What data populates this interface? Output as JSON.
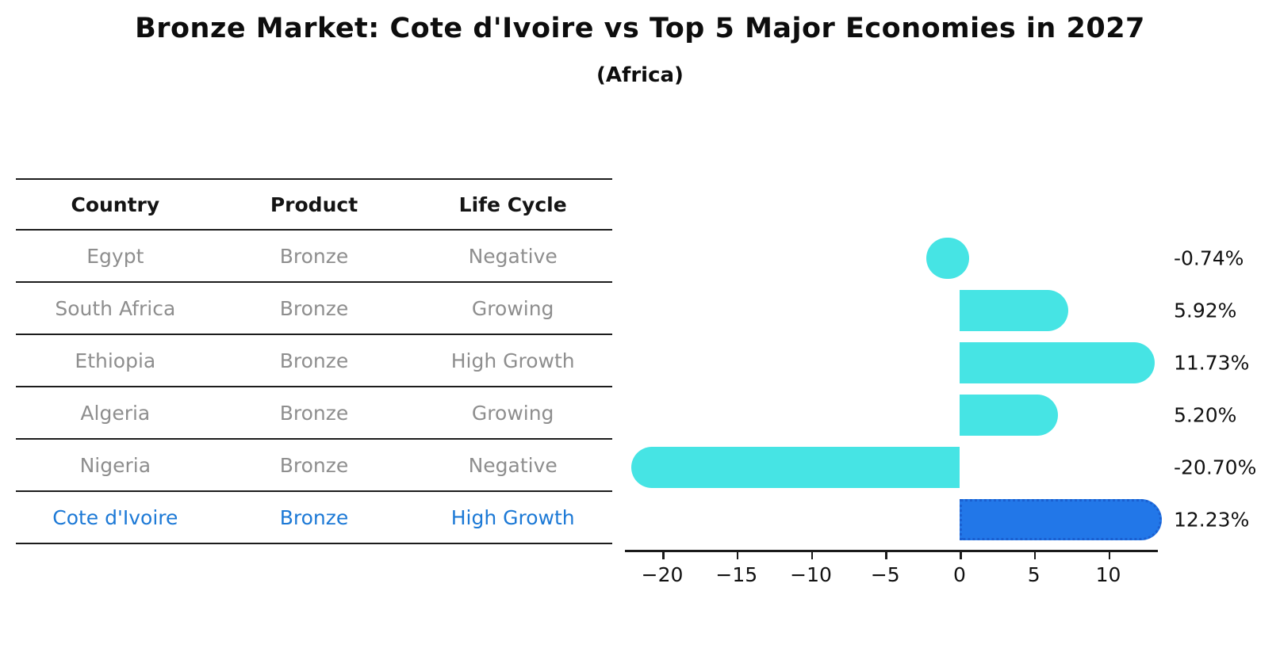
{
  "title": "Bronze Market: Cote d'Ivoire vs Top 5 Major Economies in 2027",
  "subtitle": "(Africa)",
  "table": {
    "columns": [
      "Country",
      "Product",
      "Life Cycle"
    ],
    "rows": [
      {
        "country": "Egypt",
        "product": "Bronze",
        "life_cycle": "Negative",
        "highlighted": false
      },
      {
        "country": "South Africa",
        "product": "Bronze",
        "life_cycle": "Growing",
        "highlighted": false
      },
      {
        "country": "Ethiopia",
        "product": "Bronze",
        "life_cycle": "High Growth",
        "highlighted": false
      },
      {
        "country": "Algeria",
        "product": "Bronze",
        "life_cycle": "Growing",
        "highlighted": false
      },
      {
        "country": "Nigeria",
        "product": "Bronze",
        "life_cycle": "Negative",
        "highlighted": false
      },
      {
        "country": "Cote d'Ivoire",
        "product": "Bronze",
        "life_cycle": "High Growth",
        "highlighted": true
      }
    ]
  },
  "chart_data": {
    "type": "bar",
    "orientation": "horizontal",
    "title": "Bronze Market: Cote d'Ivoire vs Top 5 Major Economies in 2027",
    "subtitle": "(Africa)",
    "categories": [
      "Egypt",
      "South Africa",
      "Ethiopia",
      "Algeria",
      "Nigeria",
      "Cote d'Ivoire"
    ],
    "values": [
      -0.74,
      5.92,
      11.73,
      5.2,
      -20.7,
      12.23
    ],
    "value_labels": [
      "-0.74%",
      "5.92%",
      "11.73%",
      "5.20%",
      "-20.70%",
      "12.23%"
    ],
    "unit": "%",
    "highlight_index": 5,
    "x_ticks": [
      -20,
      -15,
      -10,
      -5,
      0,
      5,
      10
    ],
    "x_tick_labels": [
      "−20",
      "−15",
      "−10",
      "−5",
      "0",
      "5",
      "10"
    ],
    "xlim": [
      -22.5,
      13.4
    ],
    "grid": false,
    "legend": null,
    "bar_color": "#46E4E4",
    "highlight_bar_color": "#2277E8",
    "highlight_border_color": "#1A5FD0"
  },
  "colors": {
    "background": "#FFFFFF",
    "table_text": "#8E8E8E",
    "header_text": "#141414",
    "highlight_text": "#1C79D6",
    "axis": "#1A1A1A",
    "value_label_text": "#111111"
  }
}
